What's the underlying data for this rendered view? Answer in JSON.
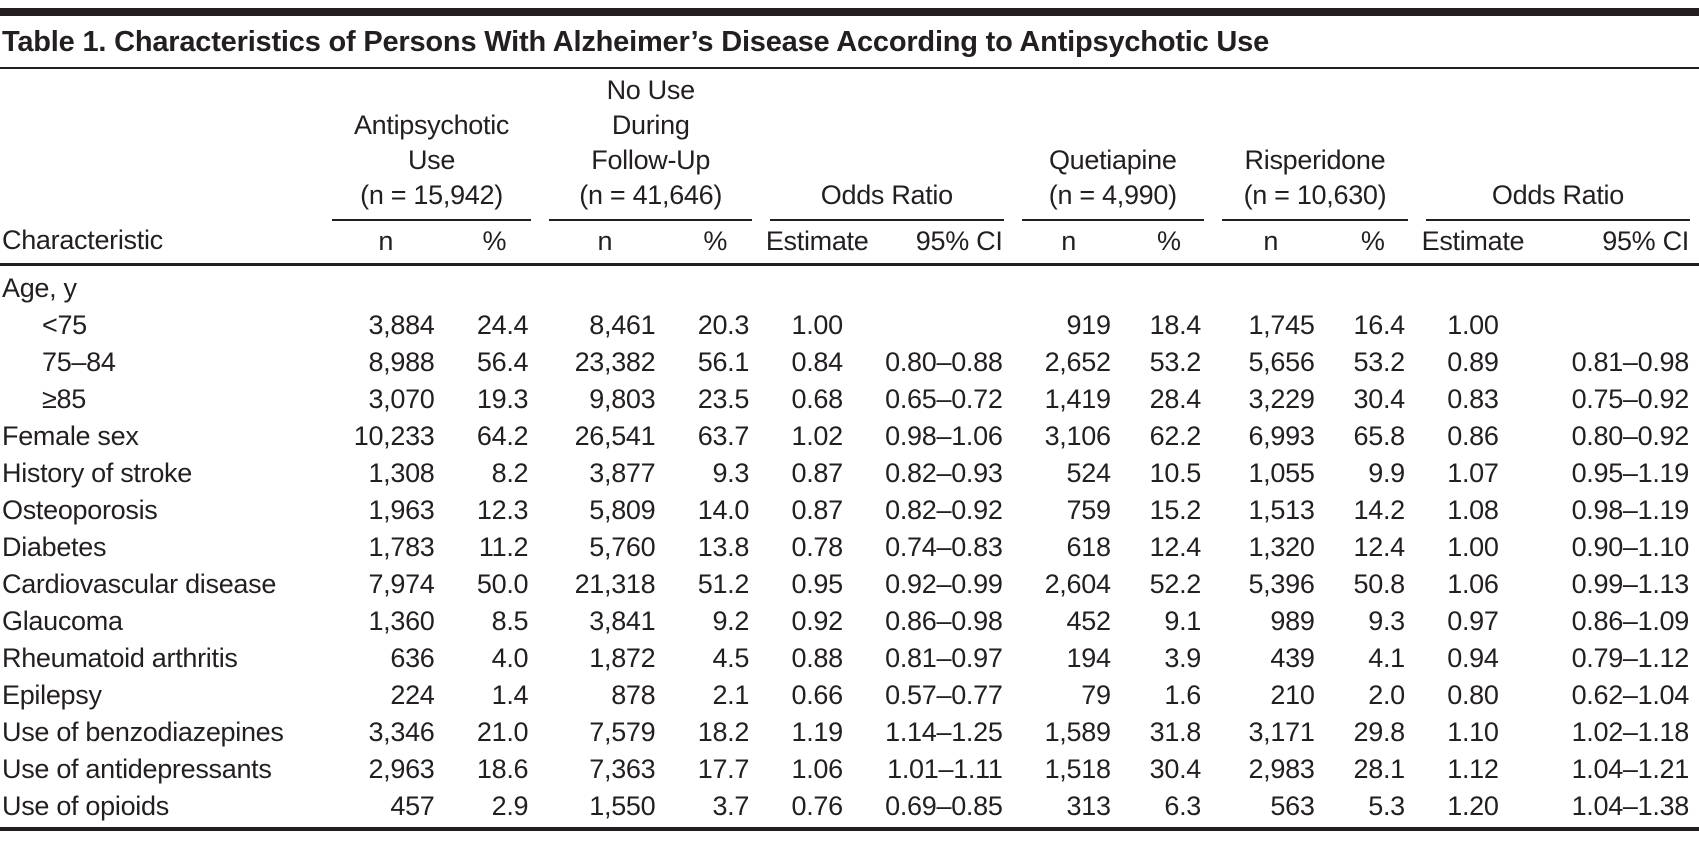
{
  "title": "Table 1. Characteristics of Persons With Alzheimer’s Disease According to Antipsychotic Use",
  "table": {
    "header": {
      "characteristic": "Characteristic",
      "groups": [
        {
          "id": "antipsychotic-use",
          "label": "Antipsychotic\nUse\n(n = 15,942)"
        },
        {
          "id": "no-use-during-follow-up",
          "label": "No Use\nDuring\nFollow-Up\n(n = 41,646)"
        },
        {
          "id": "odds-ratio-use-vs-no-use",
          "label": "Odds Ratio"
        },
        {
          "id": "quetiapine",
          "label": "Quetiapine\n(n = 4,990)"
        },
        {
          "id": "risperidone",
          "label": "Risperidone\n(n = 10,630)"
        },
        {
          "id": "odds-ratio-risperidone-vs-quetiapine",
          "label": "Odds Ratio"
        }
      ],
      "subheaders": [
        {
          "id": "antipsychotic-n",
          "label": "n",
          "type": "n"
        },
        {
          "id": "antipsychotic-pct",
          "label": "%",
          "type": "pct"
        },
        {
          "id": "no-use-n",
          "label": "n",
          "type": "n"
        },
        {
          "id": "no-use-pct",
          "label": "%",
          "type": "pct"
        },
        {
          "id": "odds-ratio-1-estimate",
          "label": "Estimate",
          "type": "est"
        },
        {
          "id": "odds-ratio-1-ci",
          "label": "95% CI",
          "type": "ci"
        },
        {
          "id": "quetiapine-n",
          "label": "n",
          "type": "n"
        },
        {
          "id": "quetiapine-pct",
          "label": "%",
          "type": "pct"
        },
        {
          "id": "risperidone-n",
          "label": "n",
          "type": "n"
        },
        {
          "id": "risperidone-pct",
          "label": "%",
          "type": "pct"
        },
        {
          "id": "odds-ratio-2-estimate",
          "label": "Estimate",
          "type": "est"
        },
        {
          "id": "odds-ratio-2-ci",
          "label": "95% CI",
          "type": "ci"
        }
      ]
    },
    "rows": [
      {
        "label": "Age, y",
        "indent": false,
        "section": true,
        "values": [
          "",
          "",
          "",
          "",
          "",
          "",
          "",
          "",
          "",
          "",
          "",
          ""
        ]
      },
      {
        "label": "<75",
        "indent": true,
        "values": [
          "3,884",
          "24.4",
          "8,461",
          "20.3",
          "1.00",
          "",
          "919",
          "18.4",
          "1,745",
          "16.4",
          "1.00",
          ""
        ]
      },
      {
        "label": "75–84",
        "indent": true,
        "values": [
          "8,988",
          "56.4",
          "23,382",
          "56.1",
          "0.84",
          "0.80–0.88",
          "2,652",
          "53.2",
          "5,656",
          "53.2",
          "0.89",
          "0.81–0.98"
        ]
      },
      {
        "label": "≥85",
        "indent": true,
        "values": [
          "3,070",
          "19.3",
          "9,803",
          "23.5",
          "0.68",
          "0.65–0.72",
          "1,419",
          "28.4",
          "3,229",
          "30.4",
          "0.83",
          "0.75–0.92"
        ]
      },
      {
        "label": "Female sex",
        "indent": false,
        "values": [
          "10,233",
          "64.2",
          "26,541",
          "63.7",
          "1.02",
          "0.98–1.06",
          "3,106",
          "62.2",
          "6,993",
          "65.8",
          "0.86",
          "0.80–0.92"
        ]
      },
      {
        "label": "History of stroke",
        "indent": false,
        "values": [
          "1,308",
          "8.2",
          "3,877",
          "9.3",
          "0.87",
          "0.82–0.93",
          "524",
          "10.5",
          "1,055",
          "9.9",
          "1.07",
          "0.95–1.19"
        ]
      },
      {
        "label": "Osteoporosis",
        "indent": false,
        "values": [
          "1,963",
          "12.3",
          "5,809",
          "14.0",
          "0.87",
          "0.82–0.92",
          "759",
          "15.2",
          "1,513",
          "14.2",
          "1.08",
          "0.98–1.19"
        ]
      },
      {
        "label": "Diabetes",
        "indent": false,
        "values": [
          "1,783",
          "11.2",
          "5,760",
          "13.8",
          "0.78",
          "0.74–0.83",
          "618",
          "12.4",
          "1,320",
          "12.4",
          "1.00",
          "0.90–1.10"
        ]
      },
      {
        "label": "Cardiovascular disease",
        "indent": false,
        "values": [
          "7,974",
          "50.0",
          "21,318",
          "51.2",
          "0.95",
          "0.92–0.99",
          "2,604",
          "52.2",
          "5,396",
          "50.8",
          "1.06",
          "0.99–1.13"
        ]
      },
      {
        "label": "Glaucoma",
        "indent": false,
        "values": [
          "1,360",
          "8.5",
          "3,841",
          "9.2",
          "0.92",
          "0.86–0.98",
          "452",
          "9.1",
          "989",
          "9.3",
          "0.97",
          "0.86–1.09"
        ]
      },
      {
        "label": "Rheumatoid arthritis",
        "indent": false,
        "values": [
          "636",
          "4.0",
          "1,872",
          "4.5",
          "0.88",
          "0.81–0.97",
          "194",
          "3.9",
          "439",
          "4.1",
          "0.94",
          "0.79–1.12"
        ]
      },
      {
        "label": "Epilepsy",
        "indent": false,
        "values": [
          "224",
          "1.4",
          "878",
          "2.1",
          "0.66",
          "0.57–0.77",
          "79",
          "1.6",
          "210",
          "2.0",
          "0.80",
          "0.62–1.04"
        ]
      },
      {
        "label": "Use of benzodiazepines",
        "indent": false,
        "values": [
          "3,346",
          "21.0",
          "7,579",
          "18.2",
          "1.19",
          "1.14–1.25",
          "1,589",
          "31.8",
          "3,171",
          "29.8",
          "1.10",
          "1.02–1.18"
        ]
      },
      {
        "label": "Use of antidepressants",
        "indent": false,
        "values": [
          "2,963",
          "18.6",
          "7,363",
          "17.7",
          "1.06",
          "1.01–1.11",
          "1,518",
          "30.4",
          "2,983",
          "28.1",
          "1.12",
          "1.04–1.21"
        ]
      },
      {
        "label": "Use of opioids",
        "indent": false,
        "values": [
          "457",
          "2.9",
          "1,550",
          "3.7",
          "0.76",
          "0.69–0.85",
          "313",
          "6.3",
          "563",
          "5.3",
          "1.20",
          "1.04–1.38"
        ]
      }
    ],
    "column_widths_pct": [
      19.0,
      7.4,
      5.4,
      7.6,
      5.4,
      6.6,
      8.2,
      6.6,
      5.2,
      6.8,
      5.2,
      6.6,
      10.0
    ],
    "colors": {
      "text": "#231f20",
      "rule": "#231f20",
      "background": "#ffffff"
    }
  }
}
